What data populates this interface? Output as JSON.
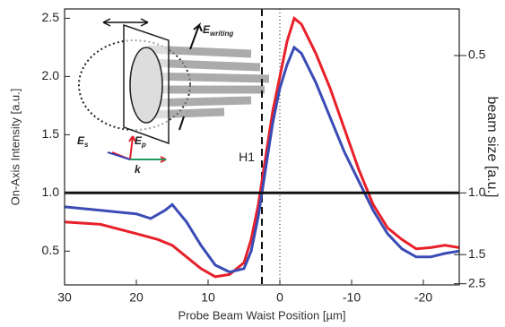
{
  "chart_data": {
    "type": "line",
    "xlabel": "Probe Beam Waist Position [µm]",
    "ylabel": "On-Axis Intensity [a.u.]",
    "y2label": "beam size [a.u.]",
    "xlim": [
      30,
      -25
    ],
    "ylim": [
      0.21,
      2.58
    ],
    "xticks": [
      30,
      20,
      10,
      0,
      -10,
      -20
    ],
    "yticks": [
      0.5,
      {
        "value": 1.0,
        "label": "1.0"
      },
      1.5,
      {
        "value": 2.0,
        "label": "2.0"
      },
      2.5
    ],
    "y2ticks": [
      "0.5",
      "1.0",
      "1.5",
      "2.5"
    ],
    "y2tick_at": [
      2.18,
      1.0,
      0.47,
      0.22
    ],
    "vlines": [
      {
        "x": 2.5,
        "style": "dashed"
      },
      {
        "x": 0,
        "style": "dotted"
      }
    ],
    "annotation": {
      "text": "H1",
      "x": 3.5,
      "y": 1.3
    },
    "inset_labels": [
      {
        "main": "E",
        "sub": "writing",
        "color": "#222"
      },
      {
        "main": "E",
        "sub": "s",
        "color": "#3a3fb0"
      },
      {
        "main": "E",
        "sub": "p",
        "color": "#e0202a"
      },
      {
        "main": "k",
        "color": "#1e9a5a"
      }
    ],
    "series": [
      {
        "color": "#e8202a",
        "x": [
          30,
          25,
          20,
          17,
          15,
          13,
          11,
          9,
          7,
          5,
          4,
          3,
          2,
          1,
          0,
          -1,
          -2,
          -3,
          -5,
          -7,
          -9,
          -11,
          -13,
          -15,
          -17,
          -19,
          -21,
          -23,
          -25
        ],
        "values": [
          0.75,
          0.73,
          0.65,
          0.6,
          0.55,
          0.45,
          0.35,
          0.28,
          0.3,
          0.4,
          0.6,
          0.9,
          1.3,
          1.7,
          2.0,
          2.3,
          2.5,
          2.45,
          2.2,
          1.9,
          1.55,
          1.2,
          0.9,
          0.7,
          0.6,
          0.52,
          0.53,
          0.55,
          0.53
        ]
      },
      {
        "color": "#3a4bb5",
        "x": [
          30,
          25,
          20,
          18,
          16,
          15,
          13,
          11,
          9,
          7,
          5,
          4,
          3,
          2,
          1,
          0,
          -1,
          -2,
          -3,
          -5,
          -7,
          -9,
          -11,
          -13,
          -15,
          -17,
          -19,
          -21,
          -23,
          -25
        ],
        "values": [
          0.88,
          0.85,
          0.82,
          0.78,
          0.85,
          0.9,
          0.75,
          0.55,
          0.38,
          0.32,
          0.35,
          0.5,
          0.8,
          1.2,
          1.6,
          1.9,
          2.1,
          2.25,
          2.2,
          1.95,
          1.65,
          1.35,
          1.1,
          0.85,
          0.65,
          0.52,
          0.45,
          0.45,
          0.48,
          0.5
        ]
      },
      {
        "color": "#111111",
        "x": [
          30,
          20,
          10,
          0,
          -10,
          -20,
          -25
        ],
        "values": [
          1.0,
          1.0,
          1.0,
          1.0,
          1.0,
          1.0,
          1.0
        ]
      }
    ]
  }
}
